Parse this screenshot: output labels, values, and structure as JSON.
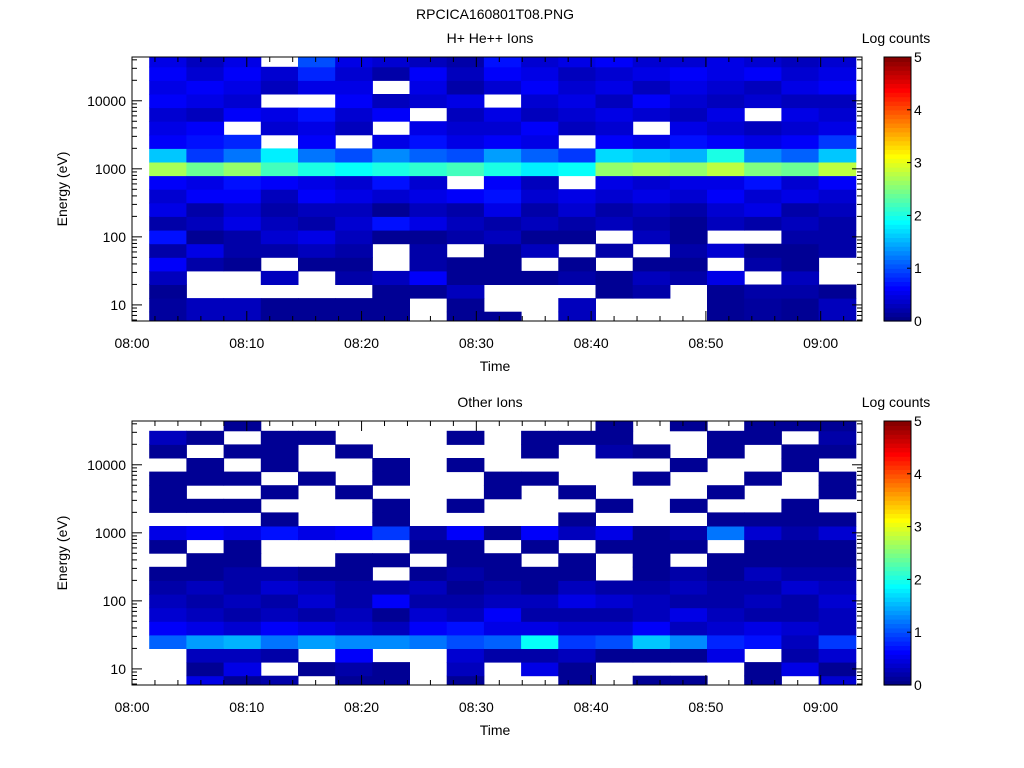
{
  "figure_title": "RPCICA160801T08.PNG",
  "chart_data": [
    {
      "type": "heatmap",
      "title": "H+ He++ Ions",
      "xlabel": "Time",
      "ylabel": "Energy (eV)",
      "x_unit": "minutes after 08:00",
      "xlim": [
        0,
        63.6
      ],
      "x_ticks": [
        0,
        10,
        20,
        30,
        40,
        50,
        60
      ],
      "x_tick_labels": [
        "08:00",
        "08:10",
        "08:20",
        "08:30",
        "08:40",
        "08:50",
        "09:00"
      ],
      "ylim": [
        5.8,
        44000
      ],
      "y_scale": "log",
      "y_ticks": [
        10,
        100,
        1000,
        10000
      ],
      "y_tick_labels": [
        "10",
        "100",
        "1000",
        "10000"
      ],
      "colorbar": {
        "label": "Log counts",
        "range": [
          0,
          5
        ],
        "ticks": [
          "0",
          "1",
          "2",
          "3",
          "4",
          "5"
        ],
        "colormap": "rainbow"
      },
      "column_start": 1.5,
      "column_width": 3.24,
      "log10_energy_bin_edges_start": 0.7,
      "log10_energy_bin_width": 0.2,
      "values_by_column_low_to_high_energy": [
        [
          0.15,
          0.15,
          0.1,
          0.3,
          0.6,
          0.2,
          0.7,
          0.2,
          0.5,
          0.4,
          0.6,
          2.7,
          1.6,
          0.6,
          0.5,
          0.4,
          0.6,
          0.5,
          0.6,
          0.5
        ],
        [
          0.3,
          0.3,
          null,
          null,
          0.2,
          0.5,
          0.1,
          0.3,
          0.2,
          0.6,
          0.5,
          2.4,
          0.9,
          0.7,
          0.6,
          0.3,
          0.5,
          0.6,
          0.4,
          0.3
        ],
        [
          0.3,
          0.3,
          null,
          null,
          0.1,
          0.2,
          0.2,
          0.5,
          0.4,
          0.6,
          0.7,
          2.6,
          1.2,
          0.8,
          null,
          0.6,
          0.4,
          0.5,
          0.6,
          0.5
        ],
        [
          0.1,
          0.1,
          null,
          0.3,
          null,
          0.2,
          0.4,
          0.3,
          0.2,
          0.3,
          0.6,
          2.2,
          1.8,
          null,
          0.4,
          0.5,
          null,
          0.3,
          0.4,
          null
        ],
        [
          0.1,
          0.1,
          null,
          null,
          0.1,
          0.3,
          0.5,
          0.2,
          0.3,
          0.6,
          0.5,
          2.0,
          1.2,
          0.6,
          0.5,
          0.7,
          null,
          0.5,
          0.8,
          1.0
        ],
        [
          0.1,
          0.1,
          null,
          0.2,
          0.1,
          0.2,
          0.3,
          0.4,
          0.3,
          0.5,
          0.4,
          1.9,
          1.0,
          null,
          0.3,
          0.4,
          0.6,
          0.5,
          0.4,
          0.5
        ],
        [
          0.1,
          0.1,
          0.1,
          0.3,
          null,
          null,
          0.1,
          0.7,
          0.1,
          0.4,
          0.7,
          2.0,
          1.3,
          0.5,
          null,
          0.6,
          0.3,
          null,
          0.2,
          0.4
        ],
        [
          null,
          null,
          0.1,
          0.6,
          0.2,
          0.2,
          0.1,
          0.5,
          0.3,
          0.5,
          0.4,
          2.1,
          1.1,
          0.7,
          0.5,
          null,
          0.4,
          0.5,
          0.6,
          0.3
        ],
        [
          0.1,
          0.1,
          0.3,
          0.1,
          0.1,
          null,
          0.2,
          0.3,
          0.2,
          0.6,
          null,
          2.2,
          1.0,
          0.5,
          0.4,
          0.3,
          0.5,
          0.2,
          0.3,
          0.2
        ],
        [
          0.1,
          null,
          null,
          0.1,
          0.1,
          0.1,
          0.3,
          0.2,
          0.5,
          0.7,
          0.6,
          2.0,
          1.4,
          0.6,
          0.4,
          0.5,
          null,
          0.4,
          0.6,
          0.7
        ],
        [
          null,
          null,
          null,
          0.1,
          null,
          0.3,
          0.1,
          0.3,
          0.2,
          0.4,
          0.3,
          1.8,
          1.1,
          0.5,
          0.6,
          0.3,
          0.4,
          0.6,
          0.5,
          0.4
        ],
        [
          0.3,
          0.3,
          null,
          0.2,
          0.1,
          null,
          0.1,
          0.2,
          0.4,
          0.5,
          null,
          1.9,
          0.9,
          null,
          0.3,
          0.4,
          0.5,
          0.4,
          0.3,
          0.5
        ],
        [
          null,
          null,
          0.1,
          0.1,
          null,
          0.2,
          null,
          0.3,
          0.2,
          0.4,
          0.5,
          2.6,
          1.7,
          0.6,
          0.4,
          0.5,
          0.3,
          0.5,
          0.4,
          0.6
        ],
        [
          null,
          null,
          0.2,
          0.3,
          0.1,
          null,
          0.3,
          0.2,
          0.3,
          0.5,
          0.4,
          2.7,
          1.6,
          0.5,
          null,
          0.4,
          0.6,
          0.3,
          0.5,
          0.4
        ],
        [
          null,
          null,
          null,
          0.2,
          0.1,
          0.2,
          0.1,
          0.1,
          0.2,
          0.4,
          0.5,
          2.6,
          1.5,
          0.7,
          0.5,
          0.3,
          0.4,
          0.5,
          0.6,
          0.4
        ],
        [
          0.1,
          0.1,
          0.1,
          0.5,
          null,
          0.4,
          null,
          0.3,
          0.4,
          0.6,
          0.5,
          2.8,
          2.0,
          0.6,
          0.4,
          0.5,
          0.3,
          0.4,
          0.5,
          0.5
        ],
        [
          0.15,
          0.15,
          0.2,
          null,
          0.2,
          0.1,
          null,
          0.2,
          0.5,
          0.4,
          0.7,
          2.5,
          1.3,
          0.5,
          0.3,
          null,
          0.4,
          0.3,
          0.6,
          0.4
        ],
        [
          0.1,
          0.1,
          0.2,
          0.3,
          0.1,
          0.1,
          0.2,
          0.3,
          0.2,
          0.5,
          0.4,
          2.4,
          1.1,
          0.6,
          0.4,
          0.5,
          0.3,
          0.5,
          0.4,
          0.3
        ],
        [
          0.3,
          0.3,
          0.1,
          null,
          null,
          0.2,
          0.2,
          0.2,
          0.3,
          0.4,
          0.6,
          2.8,
          1.6,
          0.9,
          0.5,
          0.4,
          0.3,
          0.6,
          0.5,
          0.4
        ]
      ]
    },
    {
      "type": "heatmap",
      "title": "Other Ions",
      "xlabel": "Time",
      "ylabel": "Energy (eV)",
      "x_unit": "minutes after 08:00",
      "xlim": [
        0,
        63.6
      ],
      "x_ticks": [
        0,
        10,
        20,
        30,
        40,
        50,
        60
      ],
      "x_tick_labels": [
        "08:00",
        "08:10",
        "08:20",
        "08:30",
        "08:40",
        "08:50",
        "09:00"
      ],
      "ylim": [
        5.8,
        44000
      ],
      "y_scale": "log",
      "y_ticks": [
        10,
        100,
        1000,
        10000
      ],
      "y_tick_labels": [
        "10",
        "100",
        "1000",
        "10000"
      ],
      "colorbar": {
        "label": "Log counts",
        "range": [
          0,
          5
        ],
        "ticks": [
          "0",
          "1",
          "2",
          "3",
          "4",
          "5"
        ],
        "colormap": "rainbow"
      },
      "column_start": 1.5,
      "column_width": 3.24,
      "log10_energy_bin_edges_start": 0.7,
      "log10_energy_bin_width": 0.2,
      "values_by_column_low_to_high_energy": [
        [
          null,
          null,
          null,
          1.1,
          0.6,
          0.4,
          0.3,
          0.2,
          0.1,
          null,
          0.1,
          0.5,
          null,
          0.1,
          0.1,
          0.1,
          null,
          0.1,
          0.3,
          null
        ],
        [
          0.5,
          0.1,
          0.3,
          1.4,
          0.5,
          0.3,
          0.2,
          0.3,
          0.1,
          0.1,
          null,
          0.6,
          null,
          0.1,
          null,
          0.1,
          0.1,
          null,
          0.1,
          null
        ],
        [
          0.1,
          0.5,
          0.3,
          1.5,
          0.4,
          0.2,
          0.3,
          0.2,
          0.2,
          0.1,
          0.1,
          0.5,
          null,
          0.1,
          null,
          0.1,
          null,
          0.1,
          null,
          0.1
        ],
        [
          0.2,
          null,
          0.2,
          1.2,
          0.6,
          0.3,
          0.2,
          0.4,
          0.2,
          null,
          null,
          0.7,
          0.1,
          null,
          0.1,
          null,
          0.1,
          0.1,
          0.1,
          null
        ],
        [
          null,
          0.1,
          null,
          1.4,
          0.5,
          0.2,
          0.4,
          0.3,
          0.1,
          null,
          null,
          0.5,
          null,
          null,
          null,
          0.1,
          null,
          null,
          0.1,
          null
        ],
        [
          0.1,
          0.2,
          0.6,
          1.3,
          0.4,
          0.3,
          0.2,
          0.2,
          0.1,
          0.1,
          null,
          0.6,
          null,
          null,
          0.1,
          null,
          null,
          0.1,
          null,
          null
        ],
        [
          0.1,
          0.1,
          null,
          1.3,
          0.3,
          0.1,
          0.6,
          0.2,
          null,
          0.1,
          null,
          0.9,
          0.1,
          0.1,
          null,
          0.1,
          0.1,
          null,
          null,
          null
        ],
        [
          null,
          null,
          null,
          1.2,
          0.6,
          0.4,
          0.2,
          0.3,
          0.1,
          null,
          0.1,
          0.2,
          null,
          null,
          null,
          null,
          null,
          null,
          null,
          null
        ],
        [
          0.1,
          0.3,
          0.4,
          1.0,
          0.7,
          0.3,
          0.2,
          0.1,
          0.2,
          0.1,
          0.1,
          0.6,
          null,
          0.1,
          null,
          null,
          0.1,
          null,
          0.1,
          null
        ],
        [
          null,
          null,
          0.2,
          1.1,
          0.5,
          0.6,
          0.3,
          0.2,
          0.1,
          0.1,
          null,
          0.1,
          null,
          null,
          0.1,
          0.1,
          null,
          null,
          null,
          null
        ],
        [
          null,
          0.5,
          0.2,
          1.9,
          0.5,
          0.2,
          0.3,
          0.1,
          0.1,
          null,
          0.1,
          0.6,
          null,
          null,
          null,
          0.1,
          null,
          0.1,
          0.1,
          null
        ],
        [
          0.1,
          0.1,
          0.3,
          0.9,
          0.4,
          0.2,
          0.5,
          0.3,
          0.1,
          0.1,
          null,
          0.3,
          0.1,
          null,
          0.1,
          null,
          null,
          null,
          0.1,
          null
        ],
        [
          null,
          null,
          0.1,
          1.0,
          0.4,
          0.2,
          0.4,
          0.2,
          null,
          null,
          0.1,
          0.5,
          null,
          0.1,
          null,
          null,
          null,
          0.2,
          0.1,
          0.1
        ],
        [
          0.1,
          null,
          0.1,
          1.6,
          0.6,
          0.3,
          0.3,
          0.2,
          0.1,
          0.1,
          0.1,
          0.1,
          null,
          null,
          null,
          0.1,
          null,
          0.1,
          null,
          null
        ],
        [
          0.1,
          null,
          0.1,
          1.3,
          0.3,
          0.5,
          0.2,
          0.3,
          0.2,
          null,
          0.1,
          0.2,
          null,
          0.1,
          null,
          null,
          0.1,
          null,
          null,
          0.1
        ],
        [
          null,
          null,
          0.5,
          0.8,
          0.4,
          0.3,
          0.2,
          0.2,
          0.1,
          0.1,
          null,
          1.2,
          0.1,
          null,
          0.1,
          null,
          null,
          0.1,
          0.1,
          null
        ],
        [
          0.1,
          0.1,
          null,
          0.7,
          0.5,
          0.2,
          0.3,
          0.2,
          0.3,
          0.1,
          0.1,
          0.4,
          0.1,
          null,
          null,
          0.1,
          null,
          null,
          0.1,
          0.1
        ],
        [
          null,
          0.5,
          0.2,
          0.3,
          0.4,
          0.2,
          0.2,
          0.4,
          0.2,
          0.1,
          0.1,
          0.2,
          0.1,
          0.1,
          null,
          null,
          0.1,
          0.1,
          null,
          0.1
        ],
        [
          0.4,
          0.1,
          0.4,
          0.9,
          0.3,
          0.3,
          0.4,
          0.3,
          0.2,
          0.1,
          0.1,
          0.4,
          0.1,
          null,
          0.1,
          0.1,
          null,
          0.1,
          0.2,
          0.1
        ]
      ]
    }
  ]
}
